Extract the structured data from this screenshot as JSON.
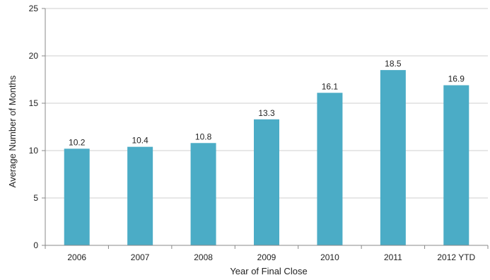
{
  "chart_data": {
    "type": "bar",
    "categories": [
      "2006",
      "2007",
      "2008",
      "2009",
      "2010",
      "2011",
      "2012 YTD"
    ],
    "values": [
      10.2,
      10.4,
      10.8,
      13.3,
      16.1,
      18.5,
      16.9
    ],
    "data_labels": [
      "10.2",
      "10.4",
      "10.8",
      "13.3",
      "16.1",
      "18.5",
      "16.9"
    ],
    "xlabel": "Year of Final Close",
    "ylabel": "Average Number of Months",
    "ylim": [
      0,
      25
    ],
    "yticks": [
      0,
      5,
      10,
      15,
      20,
      25
    ],
    "ytick_labels": [
      "0",
      "5",
      "10",
      "15",
      "20",
      "25"
    ],
    "grid": true,
    "bar_color": "#4BACC6"
  }
}
